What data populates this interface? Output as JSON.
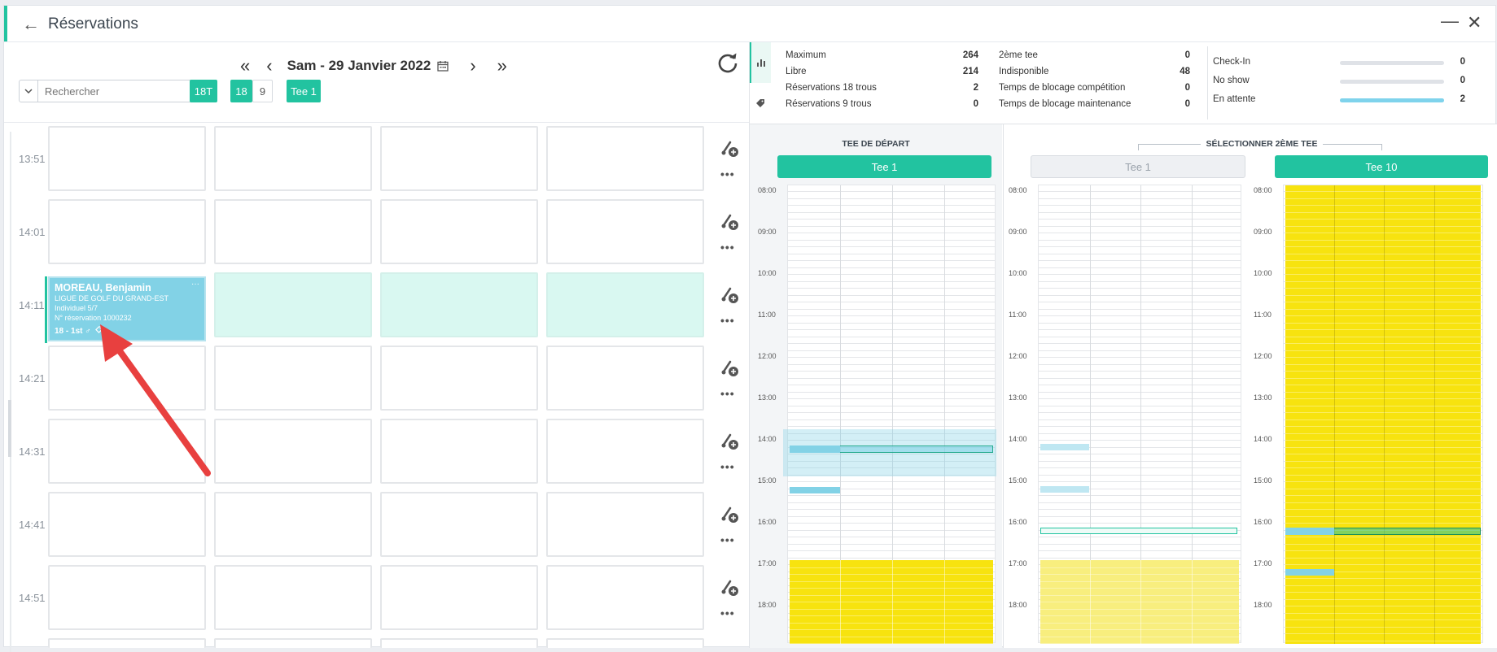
{
  "window": {
    "title": "Réservations"
  },
  "date_nav": {
    "first": "«",
    "prev": "‹",
    "date": "Sam - 29 Janvier 2022",
    "next": "›",
    "last": "»"
  },
  "search": {
    "placeholder": "Rechercher",
    "dropdown_icon": "chevron-down-icon"
  },
  "filters": {
    "btn_18t": "18T",
    "btn_18": "18",
    "btn_9": "9",
    "btn_tee": "Tee 1"
  },
  "times": [
    "13:51",
    "14:01",
    "14:11",
    "14:21",
    "14:31",
    "14:41",
    "14:51"
  ],
  "reservation": {
    "name": "MOREAU, Benjamin",
    "club": "LIGUE DE GOLF DU GRAND-EST",
    "type": "Individuel 5/7",
    "number": "N° réservation 1000232",
    "footer": "18 - 1st ♂",
    "menu": "···"
  },
  "row_more": "•••",
  "stats": {
    "col1": [
      {
        "label": "Maximum",
        "value": "264"
      },
      {
        "label": "Libre",
        "value": "214"
      },
      {
        "label": "Réservations 18 trous",
        "value": "2"
      },
      {
        "label": "Réservations 9 trous",
        "value": "0"
      }
    ],
    "col2": [
      {
        "label": "2ème tee",
        "value": "0"
      },
      {
        "label": "Indisponible",
        "value": "48"
      },
      {
        "label": "Temps de blocage compétition",
        "value": "0"
      },
      {
        "label": "Temps de blocage maintenance",
        "value": "0"
      }
    ],
    "col3": [
      {
        "label": "Check-In",
        "value": "0",
        "fraction": 0
      },
      {
        "label": "No show",
        "value": "0",
        "fraction": 0
      },
      {
        "label": "En attente",
        "value": "2",
        "fraction": 1
      }
    ]
  },
  "tee_depart": {
    "header": "TEE DE DÉPART",
    "tee_label": "Tee 1"
  },
  "second_tee": {
    "header": "SÉLECTIONNER 2ÈME TEE",
    "tee_a": "Tee 1",
    "tee_b": "Tee 10"
  },
  "schedule_hours": [
    "08:00",
    "09:00",
    "10:00",
    "11:00",
    "12:00",
    "13:00",
    "14:00",
    "15:00",
    "16:00",
    "17:00",
    "18:00"
  ],
  "colors": {
    "accent": "#22c3a0",
    "booking": "#82d2e6",
    "mint": "#d9f8f1",
    "blocked": "#f7e30f",
    "blocked_light": "#f8ee7e"
  }
}
